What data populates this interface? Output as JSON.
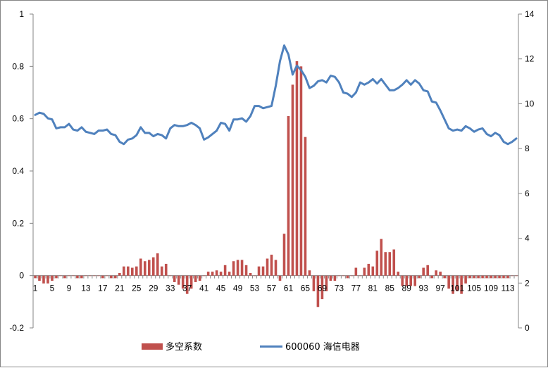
{
  "chart_data": {
    "type": "bar+line",
    "categories_start": 1,
    "categories_end": 115,
    "x_tick_labels": [
      "1",
      "5",
      "9",
      "13",
      "17",
      "21",
      "25",
      "29",
      "33",
      "37",
      "41",
      "45",
      "49",
      "53",
      "57",
      "61",
      "65",
      "69",
      "73",
      "77",
      "81",
      "85",
      "89",
      "93",
      "97",
      "101",
      "105",
      "109",
      "113"
    ],
    "y_left": {
      "min": -0.2,
      "max": 1,
      "ticks": [
        "-0.2",
        "0",
        "0.2",
        "0.4",
        "0.6",
        "0.8",
        "1"
      ]
    },
    "y_right": {
      "min": 0,
      "max": 14,
      "ticks": [
        "0",
        "2",
        "4",
        "6",
        "8",
        "10",
        "12",
        "14"
      ]
    },
    "series": [
      {
        "name": "多空系数",
        "type": "bar",
        "axis": "left",
        "color": "#C0504D",
        "values": [
          -0.01,
          -0.02,
          -0.03,
          -0.03,
          -0.02,
          -0.01,
          0.0,
          -0.01,
          0.0,
          0.0,
          -0.01,
          -0.01,
          0.0,
          0.0,
          0.0,
          0.0,
          -0.01,
          0.0,
          -0.01,
          -0.01,
          0.01,
          0.035,
          0.035,
          0.03,
          0.035,
          0.065,
          0.055,
          0.06,
          0.07,
          0.085,
          0.035,
          0.045,
          0.0,
          -0.025,
          -0.035,
          -0.05,
          -0.07,
          -0.05,
          -0.025,
          -0.02,
          0.0,
          0.015,
          0.015,
          0.02,
          0.015,
          0.04,
          0.015,
          0.055,
          0.06,
          0.06,
          0.04,
          0.01,
          0.0,
          0.035,
          0.035,
          0.065,
          0.08,
          0.06,
          -0.02,
          0.16,
          0.61,
          0.73,
          0.82,
          0.8,
          0.53,
          0.02,
          -0.06,
          -0.12,
          -0.09,
          -0.06,
          -0.02,
          -0.02,
          0.0,
          0.0,
          -0.01,
          0.0,
          0.03,
          0.0,
          0.03,
          0.045,
          0.035,
          0.095,
          0.14,
          0.09,
          0.09,
          0.1,
          0.015,
          -0.04,
          -0.04,
          -0.04,
          -0.04,
          -0.01,
          0.03,
          0.04,
          -0.01,
          0.02,
          0.015,
          -0.01,
          -0.05,
          -0.07,
          -0.06,
          -0.07,
          -0.03,
          -0.01,
          -0.01,
          -0.01,
          -0.01,
          -0.01,
          -0.01,
          -0.01,
          -0.01,
          -0.01,
          -0.01,
          0.0,
          0.0
        ]
      },
      {
        "name": "600060 海信电器",
        "type": "line",
        "axis": "right",
        "color": "#4F81BD",
        "values": [
          9.5,
          9.6,
          9.55,
          9.35,
          9.3,
          8.9,
          8.95,
          8.95,
          9.1,
          8.85,
          8.8,
          8.95,
          8.75,
          8.7,
          8.65,
          8.8,
          8.8,
          8.85,
          8.65,
          8.6,
          8.3,
          8.2,
          8.4,
          8.45,
          8.6,
          8.95,
          8.7,
          8.7,
          8.55,
          8.65,
          8.6,
          8.45,
          8.9,
          9.05,
          9.0,
          9.0,
          9.05,
          9.15,
          9.05,
          8.9,
          8.4,
          8.5,
          8.65,
          8.8,
          9.15,
          9.1,
          8.8,
          9.3,
          9.3,
          9.35,
          9.2,
          9.45,
          9.9,
          9.9,
          9.8,
          9.85,
          9.9,
          10.8,
          11.9,
          12.6,
          12.2,
          11.3,
          11.7,
          11.5,
          11.2,
          10.7,
          10.8,
          11.0,
          11.05,
          10.95,
          11.25,
          11.2,
          10.95,
          10.5,
          10.45,
          10.3,
          10.5,
          10.95,
          10.85,
          10.95,
          11.1,
          10.9,
          11.1,
          10.85,
          10.6,
          10.6,
          10.7,
          10.85,
          11.05,
          10.85,
          11.05,
          10.9,
          10.6,
          10.55,
          10.1,
          10.05,
          9.7,
          9.3,
          8.9,
          8.8,
          8.85,
          8.8,
          9.0,
          8.9,
          8.75,
          8.85,
          8.9,
          8.65,
          8.55,
          8.7,
          8.6,
          8.3,
          8.2,
          8.3,
          8.45
        ]
      }
    ],
    "legend_position": "bottom",
    "grid": false
  }
}
